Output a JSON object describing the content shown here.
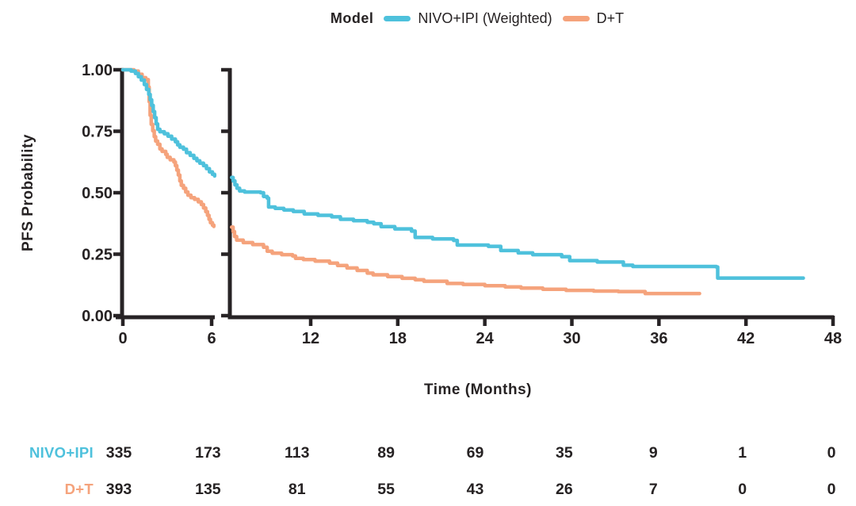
{
  "chart_data": {
    "type": "line",
    "subtype": "kaplan-meier-step-curve-with-axis-break",
    "title": "",
    "xlabel": "Time (Months)",
    "ylabel": "PFS Probability",
    "axis_color": "#272325",
    "grid": false,
    "legend": {
      "title": "Model",
      "position": "top-center",
      "entries": [
        {
          "label": "NIVO+IPI (Weighted)",
          "color": "#4ec1dc"
        },
        {
          "label": "D+T",
          "color": "#f5a37c"
        }
      ]
    },
    "x_axis": {
      "break": true,
      "left_segment_range_months": [
        0,
        6.3
      ],
      "right_segment_range_months": [
        6.5,
        48
      ],
      "left_segment_ticks": [
        0,
        6
      ],
      "right_segment_ticks": [
        12,
        18,
        24,
        30,
        36,
        42,
        48
      ]
    },
    "y_axis": {
      "range": [
        0,
        1
      ],
      "tick_values": [
        1.0,
        0.75,
        0.5,
        0.25,
        0.0
      ],
      "tick_labels": [
        "1.00",
        "0.75",
        "0.50",
        "0.25",
        "0.00"
      ]
    },
    "series": [
      {
        "name": "NIVO+IPI (Weighted)",
        "color": "#4ec1dc",
        "left_points": [
          [
            0,
            1.0
          ],
          [
            0.55,
            0.995
          ],
          [
            0.85,
            0.985
          ],
          [
            1.05,
            0.972
          ],
          [
            1.25,
            0.958
          ],
          [
            1.45,
            0.94
          ],
          [
            1.6,
            0.92
          ],
          [
            1.75,
            0.9
          ],
          [
            1.85,
            0.878
          ],
          [
            1.95,
            0.855
          ],
          [
            2.05,
            0.83
          ],
          [
            2.15,
            0.805
          ],
          [
            2.25,
            0.78
          ],
          [
            2.35,
            0.758
          ],
          [
            2.5,
            0.748
          ],
          [
            2.8,
            0.74
          ],
          [
            3.05,
            0.73
          ],
          [
            3.3,
            0.718
          ],
          [
            3.55,
            0.707
          ],
          [
            3.7,
            0.695
          ],
          [
            3.85,
            0.685
          ],
          [
            4.1,
            0.677
          ],
          [
            4.3,
            0.663
          ],
          [
            4.55,
            0.652
          ],
          [
            4.8,
            0.64
          ],
          [
            5.0,
            0.63
          ],
          [
            5.2,
            0.62
          ],
          [
            5.45,
            0.61
          ],
          [
            5.65,
            0.598
          ],
          [
            5.85,
            0.585
          ],
          [
            6.05,
            0.575
          ],
          [
            6.2,
            0.568
          ]
        ],
        "right_points": [
          [
            6.55,
            0.562
          ],
          [
            6.65,
            0.548
          ],
          [
            6.78,
            0.532
          ],
          [
            6.92,
            0.518
          ],
          [
            7.1,
            0.507
          ],
          [
            7.45,
            0.503
          ],
          [
            8.55,
            0.5
          ],
          [
            8.75,
            0.485
          ],
          [
            9.0,
            0.478
          ],
          [
            9.1,
            0.442
          ],
          [
            9.55,
            0.436
          ],
          [
            10.15,
            0.43
          ],
          [
            10.8,
            0.424
          ],
          [
            11.55,
            0.414
          ],
          [
            12.5,
            0.408
          ],
          [
            13.45,
            0.402
          ],
          [
            14.05,
            0.392
          ],
          [
            14.95,
            0.386
          ],
          [
            15.9,
            0.38
          ],
          [
            16.35,
            0.374
          ],
          [
            16.85,
            0.362
          ],
          [
            17.8,
            0.353
          ],
          [
            18.95,
            0.344
          ],
          [
            19.2,
            0.318
          ],
          [
            20.4,
            0.312
          ],
          [
            21.85,
            0.306
          ],
          [
            22.1,
            0.287
          ],
          [
            24.25,
            0.282
          ],
          [
            25.1,
            0.265
          ],
          [
            26.3,
            0.255
          ],
          [
            27.3,
            0.248
          ],
          [
            29.3,
            0.24
          ],
          [
            29.85,
            0.224
          ],
          [
            31.75,
            0.218
          ],
          [
            33.55,
            0.205
          ],
          [
            34.2,
            0.2
          ],
          [
            39.95,
            0.198
          ],
          [
            40.05,
            0.153
          ],
          [
            45.95,
            0.153
          ]
        ]
      },
      {
        "name": "D+T",
        "color": "#f5a37c",
        "left_points": [
          [
            0,
            1.0
          ],
          [
            0.75,
            0.995
          ],
          [
            1.05,
            0.982
          ],
          [
            1.3,
            0.968
          ],
          [
            1.55,
            0.96
          ],
          [
            1.72,
            0.93
          ],
          [
            1.78,
            0.87
          ],
          [
            1.84,
            0.815
          ],
          [
            1.92,
            0.778
          ],
          [
            2.02,
            0.752
          ],
          [
            2.12,
            0.728
          ],
          [
            2.22,
            0.71
          ],
          [
            2.35,
            0.697
          ],
          [
            2.5,
            0.678
          ],
          [
            2.65,
            0.668
          ],
          [
            2.9,
            0.656
          ],
          [
            3.0,
            0.644
          ],
          [
            3.2,
            0.634
          ],
          [
            3.45,
            0.625
          ],
          [
            3.55,
            0.61
          ],
          [
            3.65,
            0.592
          ],
          [
            3.75,
            0.572
          ],
          [
            3.85,
            0.548
          ],
          [
            3.95,
            0.53
          ],
          [
            4.1,
            0.518
          ],
          [
            4.25,
            0.503
          ],
          [
            4.4,
            0.49
          ],
          [
            4.6,
            0.48
          ],
          [
            4.85,
            0.473
          ],
          [
            5.1,
            0.463
          ],
          [
            5.3,
            0.452
          ],
          [
            5.45,
            0.438
          ],
          [
            5.6,
            0.423
          ],
          [
            5.72,
            0.408
          ],
          [
            5.82,
            0.392
          ],
          [
            5.92,
            0.378
          ],
          [
            6.05,
            0.368
          ],
          [
            6.15,
            0.363
          ]
        ],
        "right_points": [
          [
            6.55,
            0.36
          ],
          [
            6.65,
            0.342
          ],
          [
            6.75,
            0.322
          ],
          [
            6.9,
            0.307
          ],
          [
            7.35,
            0.297
          ],
          [
            8.0,
            0.289
          ],
          [
            8.75,
            0.278
          ],
          [
            9.0,
            0.262
          ],
          [
            9.35,
            0.254
          ],
          [
            10.0,
            0.248
          ],
          [
            10.75,
            0.243
          ],
          [
            10.95,
            0.233
          ],
          [
            11.5,
            0.228
          ],
          [
            12.3,
            0.222
          ],
          [
            13.3,
            0.214
          ],
          [
            13.85,
            0.204
          ],
          [
            14.5,
            0.194
          ],
          [
            15.2,
            0.184
          ],
          [
            15.9,
            0.173
          ],
          [
            16.3,
            0.166
          ],
          [
            17.3,
            0.159
          ],
          [
            18.3,
            0.152
          ],
          [
            19.2,
            0.146
          ],
          [
            19.8,
            0.14
          ],
          [
            21.4,
            0.131
          ],
          [
            22.5,
            0.127
          ],
          [
            24.0,
            0.122
          ],
          [
            25.4,
            0.117
          ],
          [
            26.5,
            0.112
          ],
          [
            28.0,
            0.107
          ],
          [
            29.6,
            0.103
          ],
          [
            31.5,
            0.1
          ],
          [
            33.2,
            0.098
          ],
          [
            35.05,
            0.09
          ],
          [
            38.8,
            0.09
          ]
        ]
      }
    ],
    "risk_table": {
      "times": [
        0,
        6,
        12,
        18,
        24,
        30,
        36,
        42,
        48
      ],
      "rows": [
        {
          "label": "NIVO+IPI",
          "color": "#4ec1dc",
          "counts": [
            "335",
            "173",
            "113",
            "89",
            "69",
            "35",
            "9",
            "1",
            "0"
          ]
        },
        {
          "label": "D+T",
          "color": "#f5a37c",
          "counts": [
            "393",
            "135",
            "81",
            "55",
            "43",
            "26",
            "7",
            "0",
            "0"
          ]
        }
      ]
    }
  }
}
